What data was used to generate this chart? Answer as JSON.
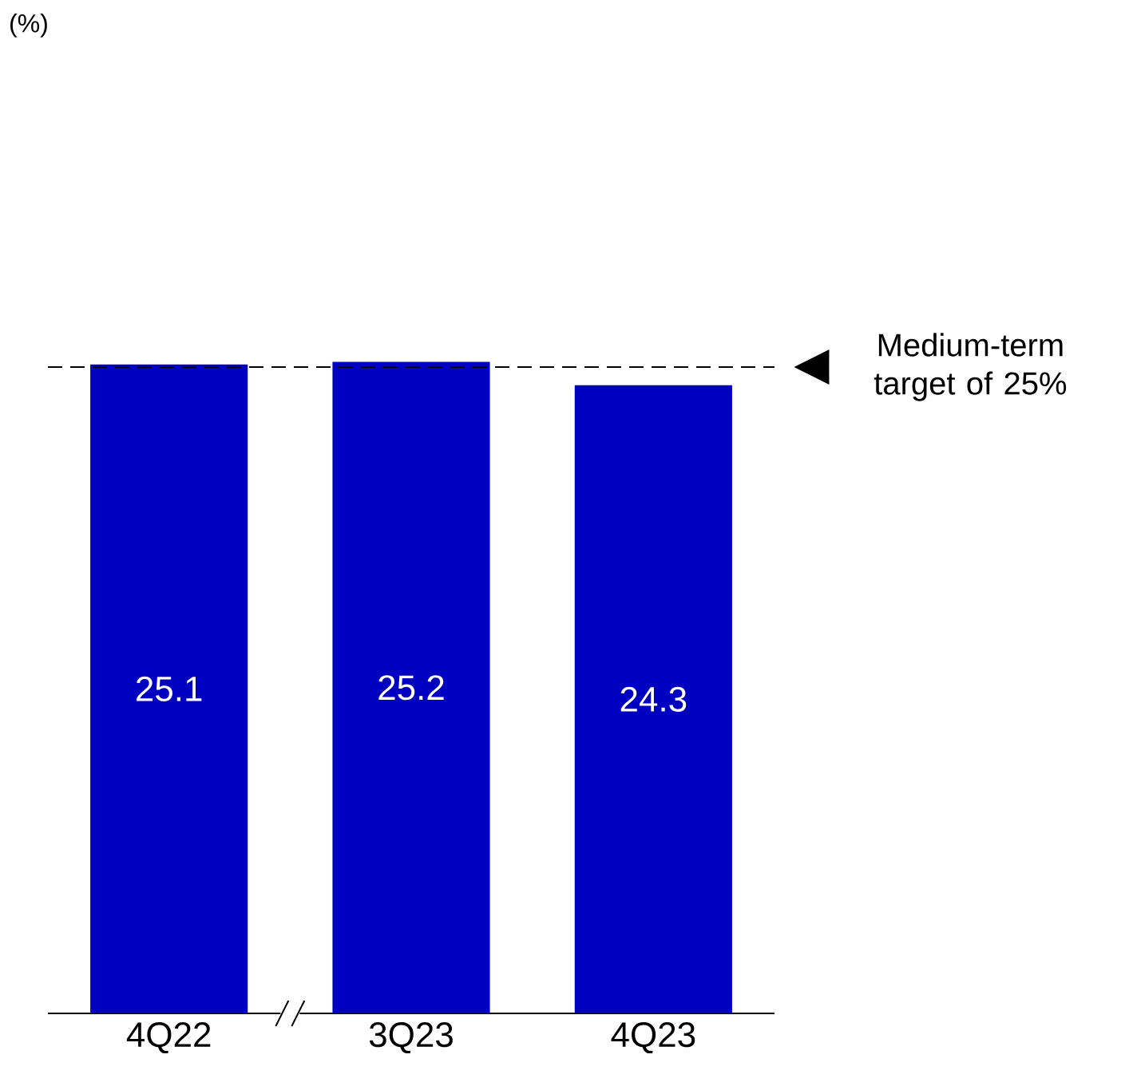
{
  "chart_data": {
    "type": "bar",
    "categories": [
      "4Q22",
      "3Q23",
      "4Q23"
    ],
    "values": [
      25.1,
      25.2,
      24.3
    ],
    "color": "#0000c0",
    "data_labels": true,
    "ref_lines": [
      {
        "axis": "y",
        "value": 25,
        "label": "Medium-term target of 25%",
        "color": "#000000",
        "line_style": "dashed"
      }
    ],
    "annotations": [
      "(%)"
    ]
  }
}
